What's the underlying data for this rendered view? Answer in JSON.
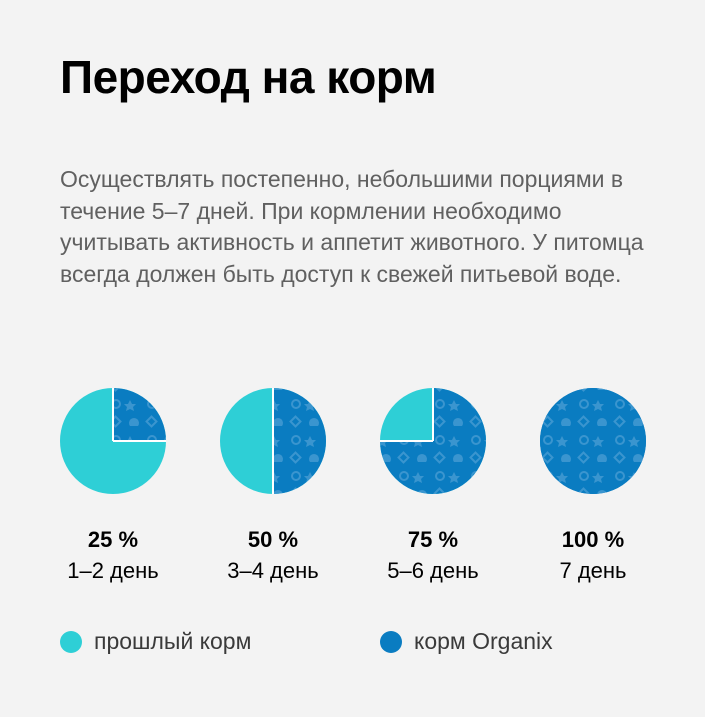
{
  "title": "Переход на корм",
  "description": "Осуществлять постепенно, небольшими порциями в течение 5–7 дней. При кормлении необходимо учитывать активность и аппетит животного. У питомца всегда должен быть доступ к свежей питьевой воде.",
  "colors": {
    "old_food": "#2ecfd6",
    "organix": "#0a7cc1",
    "pattern": "#3a95cf"
  },
  "chart_data": {
    "type": "pie",
    "series": [
      {
        "name": "прошлый корм",
        "color": "#2ecfd6"
      },
      {
        "name": "корм Organix",
        "color": "#0a7cc1"
      }
    ],
    "pies": [
      {
        "percent_label": "25 %",
        "organix_share": 25,
        "days_label": "1–2 день"
      },
      {
        "percent_label": "50 %",
        "organix_share": 50,
        "days_label": "3–4 день"
      },
      {
        "percent_label": "75 %",
        "organix_share": 75,
        "days_label": "5–6 день"
      },
      {
        "percent_label": "100 %",
        "organix_share": 100,
        "days_label": "7 день"
      }
    ],
    "legend": [
      {
        "label": "прошлый корм",
        "color": "#2ecfd6"
      },
      {
        "label": "корм Organix",
        "color": "#0a7cc1"
      }
    ]
  }
}
